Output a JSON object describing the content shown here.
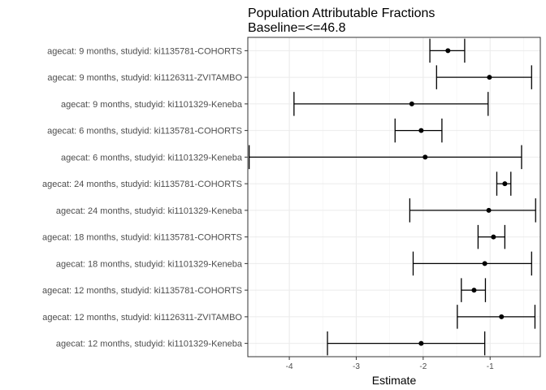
{
  "chart_data": {
    "type": "scatter",
    "title": "Population Attributable Fractions",
    "subtitle": "Baseline=<=46.8",
    "xlabel": "Estimate",
    "ylabel": "",
    "xlim": [
      -4.62,
      -0.25
    ],
    "xticks": [
      -4,
      -3,
      -2,
      -1
    ],
    "grid": true,
    "legend": "none",
    "categories": [
      "agecat: 9 months, studyid: ki1135781-COHORTS",
      "agecat: 9 months, studyid: ki1126311-ZVITAMBO",
      "agecat: 9 months, studyid: ki1101329-Keneba",
      "agecat: 6 months, studyid: ki1135781-COHORTS",
      "agecat: 6 months, studyid: ki1101329-Keneba",
      "agecat: 24 months, studyid: ki1135781-COHORTS",
      "agecat: 24 months, studyid: ki1101329-Keneba",
      "agecat: 18 months, studyid: ki1135781-COHORTS",
      "agecat: 18 months, studyid: ki1101329-Keneba",
      "agecat: 12 months, studyid: ki1135781-COHORTS",
      "agecat: 12 months, studyid: ki1126311-ZVITAMBO",
      "agecat: 12 months, studyid: ki1101329-Keneba"
    ],
    "estimates": [
      -1.63,
      -1.01,
      -2.17,
      -2.03,
      -1.97,
      -0.78,
      -1.02,
      -0.95,
      -1.08,
      -1.24,
      -0.83,
      -2.03
    ],
    "lower": [
      -1.9,
      -1.8,
      -3.93,
      -2.42,
      -4.6,
      -0.9,
      -2.2,
      -1.18,
      -2.15,
      -1.43,
      -1.49,
      -3.43
    ],
    "upper": [
      -1.38,
      -0.38,
      -1.03,
      -1.72,
      -0.53,
      -0.69,
      -0.32,
      -0.78,
      -0.38,
      -1.07,
      -0.33,
      -1.08
    ]
  }
}
